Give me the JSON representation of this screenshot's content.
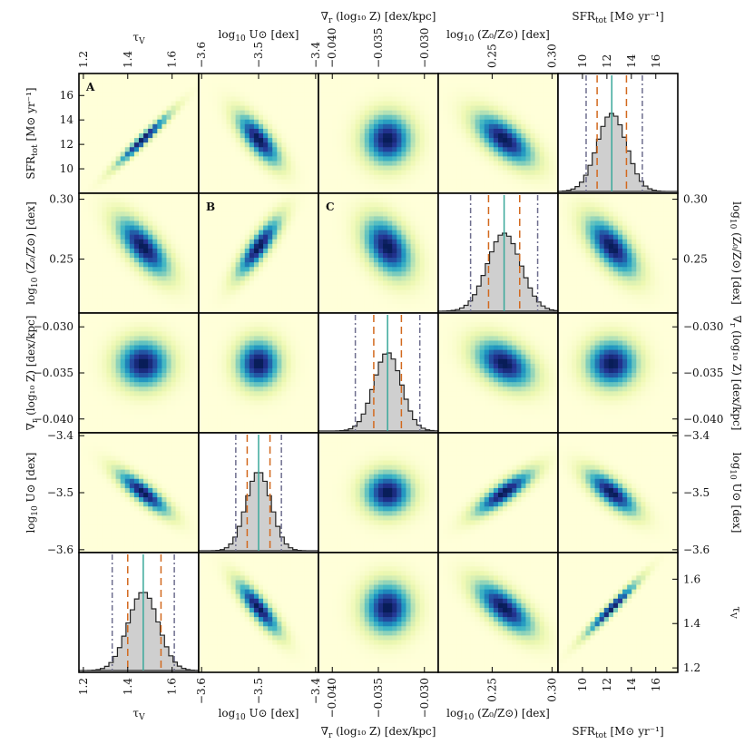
{
  "chart_data": {
    "type": "heatmap",
    "subtype": "corner-plot matrix (2D posterior densities with 1D marginal histograms on the anti-diagonal)",
    "colormap": "YlGnBu",
    "grid": false,
    "parameters": [
      {
        "key": "tau",
        "label_main": "τ",
        "label_sub": "V",
        "ticks": [
          1.2,
          1.4,
          1.6
        ],
        "tick_labels": [
          "1.2",
          "1.4",
          "1.6"
        ],
        "range": [
          1.18,
          1.72
        ]
      },
      {
        "key": "logU",
        "label_main": "log",
        "label_sub": "10",
        "label_tail": " U⊙ [dex]",
        "ticks": [
          -3.6,
          -3.5,
          -3.4
        ],
        "tick_labels": [
          "−3.6",
          "−3.5",
          "−3.4"
        ],
        "range": [
          -3.605,
          -3.395
        ]
      },
      {
        "key": "grad",
        "label_main": "∇",
        "label_sub": "r",
        "label_tail": " (log₁₀ Z) [dex/kpc]",
        "ticks": [
          -0.04,
          -0.035,
          -0.03
        ],
        "tick_labels": [
          "−0.040",
          "−0.035",
          "−0.030"
        ],
        "range": [
          -0.0415,
          -0.0285
        ]
      },
      {
        "key": "logZ0",
        "label_main": "log",
        "label_sub": "10",
        "label_tail": " (Z₀/Z⊙) [dex]",
        "ticks": [
          0.25,
          0.3
        ],
        "tick_labels": [
          "0.25",
          "0.30"
        ],
        "range": [
          0.205,
          0.305
        ]
      },
      {
        "key": "sfr",
        "label_main": "SFR",
        "label_sub": "tot",
        "label_tail": " [M⊙ yr⁻¹]",
        "ticks": [
          10,
          12,
          14,
          16
        ],
        "tick_labels": [
          "10",
          "12",
          "14",
          "16"
        ],
        "range": [
          8,
          17.8
        ]
      }
    ],
    "column_order": [
      "tau",
      "logU",
      "grad",
      "logZ0",
      "sfr"
    ],
    "row_order": [
      "sfr",
      "logZ0",
      "grad",
      "logU",
      "tau"
    ],
    "panel_labels": [
      {
        "text": "A",
        "row": 0,
        "col": 0
      },
      {
        "text": "B",
        "row": 1,
        "col": 1
      },
      {
        "text": "C",
        "row": 1,
        "col": 2
      }
    ],
    "marginals": [
      {
        "param": "sfr",
        "median": 12.4,
        "p16": 11.2,
        "p84": 13.6,
        "p2": 10.3,
        "p98": 14.9,
        "sigma": 1.2
      },
      {
        "param": "logZ0",
        "median": 0.26,
        "p16": 0.247,
        "p84": 0.273,
        "p2": 0.232,
        "p98": 0.288,
        "sigma": 0.014
      },
      {
        "param": "grad",
        "median": -0.034,
        "p16": -0.0355,
        "p84": -0.0325,
        "p2": -0.0375,
        "p98": -0.0305,
        "sigma": 0.0015
      },
      {
        "param": "logU",
        "median": -3.5,
        "p16": -3.52,
        "p84": -3.48,
        "p2": -3.54,
        "p98": -3.46,
        "sigma": 0.022
      },
      {
        "param": "tau",
        "median": 1.47,
        "p16": 1.4,
        "p84": 1.55,
        "p2": 1.33,
        "p98": 1.61,
        "sigma": 0.068
      }
    ],
    "correlations": [
      {
        "pair": [
          "tau",
          "sfr"
        ],
        "rho": 0.97
      },
      {
        "pair": [
          "logU",
          "sfr"
        ],
        "rho": -0.75
      },
      {
        "pair": [
          "grad",
          "sfr"
        ],
        "rho": 0.0
      },
      {
        "pair": [
          "logZ0",
          "sfr"
        ],
        "rho": -0.65
      },
      {
        "pair": [
          "tau",
          "logZ0"
        ],
        "rho": -0.7
      },
      {
        "pair": [
          "logU",
          "logZ0"
        ],
        "rho": 0.85
      },
      {
        "pair": [
          "grad",
          "logZ0"
        ],
        "rho": -0.4
      },
      {
        "pair": [
          "tau",
          "grad"
        ],
        "rho": 0.0
      },
      {
        "pair": [
          "logU",
          "grad"
        ],
        "rho": 0.0
      },
      {
        "pair": [
          "tau",
          "logU"
        ],
        "rho": -0.85
      }
    ],
    "line_colors": {
      "median": "#3aa89a",
      "p68": "#d2691e",
      "p95": "#6e6e8e",
      "hist_fill": "#cfcfcf",
      "hist_edge": "#222222"
    }
  }
}
